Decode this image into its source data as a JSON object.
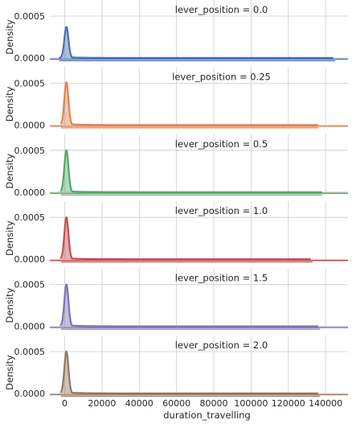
{
  "chart_data": {
    "type": "area",
    "kind": "facet-grid density (KDE) plot",
    "grid": true,
    "x": {
      "label": "duration_travelling",
      "lim": [
        -8000,
        152000
      ],
      "ticks": [
        0,
        20000,
        40000,
        60000,
        80000,
        100000,
        120000,
        140000
      ]
    },
    "y": {
      "label": "Density",
      "lim": [
        0,
        0.0005
      ],
      "ticks": [
        0.0,
        0.0005
      ],
      "tick_labels": [
        "0.0000",
        "0.0005"
      ]
    },
    "panels": [
      {
        "title": "lever_position = 0.0",
        "color": "#4c72b0",
        "peak_x": 900,
        "peak_density": 0.00037,
        "x_min": -3000,
        "x_max": 145000
      },
      {
        "title": "lever_position = 0.25",
        "color": "#dd8452",
        "peak_x": 900,
        "peak_density": 0.00051,
        "x_min": -2000,
        "x_max": 136000
      },
      {
        "title": "lever_position = 0.5",
        "color": "#55a868",
        "peak_x": 900,
        "peak_density": 0.0005,
        "x_min": -2000,
        "x_max": 138000
      },
      {
        "title": "lever_position = 1.0",
        "color": "#c44e52",
        "peak_x": 900,
        "peak_density": 0.0005,
        "x_min": -2000,
        "x_max": 133000
      },
      {
        "title": "lever_position = 1.5",
        "color": "#8172b3",
        "peak_x": 900,
        "peak_density": 0.0005,
        "x_min": -2000,
        "x_max": 137000
      },
      {
        "title": "lever_position = 2.0",
        "color": "#937860",
        "peak_x": 900,
        "peak_density": 0.0005,
        "x_min": -2000,
        "x_max": 137000
      }
    ]
  }
}
